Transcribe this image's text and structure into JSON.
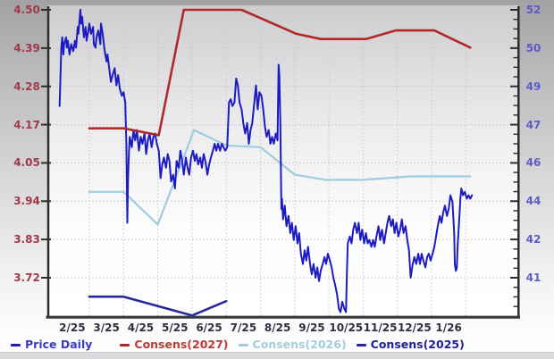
{
  "chart_data": {
    "type": "line",
    "title": "",
    "x_tick_labels": [
      "2/25",
      "3/25",
      "4/25",
      "5/25",
      "6/25",
      "7/25",
      "8/25",
      "9/25",
      "10/25",
      "11/25",
      "12/25",
      "1/26"
    ],
    "left_axis": {
      "tick_labels": [
        "4.50",
        "4.39",
        "4.28",
        "4.17",
        "4.05",
        "3.94",
        "3.83",
        "3.72"
      ],
      "color": "#a03a4a"
    },
    "right_axis": {
      "tick_labels": [
        "52",
        "50",
        "49",
        "47",
        "46",
        "44",
        "42",
        "41"
      ],
      "color": "#5c5cc4"
    },
    "x_axis": {
      "label_color": "#2f2f3f"
    },
    "grid": {
      "horizontal_color": "#d9babe",
      "vertical_color": "#c6c8ce",
      "style": "dotted"
    },
    "axis_line_color": "#2d2d30",
    "legend": {
      "position": "bottom",
      "items": [
        {
          "label": "Price Daily",
          "color": "#3a3ac8"
        },
        {
          "label": "Consens(2027)",
          "color": "#c23838"
        },
        {
          "label": "Consens(2026)",
          "color": "#a4cddd"
        },
        {
          "label": "Consens(2025)",
          "color": "#1f1f9c"
        }
      ]
    },
    "series": [
      {
        "name": "Consens(2025)",
        "color": "#28289e",
        "width": 2.6,
        "points": [
          [
            1.0,
            3.665
          ],
          [
            2.0,
            3.665
          ],
          [
            4.0,
            3.61
          ],
          [
            5.0,
            3.652
          ]
        ]
      },
      {
        "name": "Consens(2026)",
        "color": "#9fccdc",
        "width": 2.2,
        "points": [
          [
            1.0,
            3.97
          ],
          [
            2.0,
            3.97
          ],
          [
            3.0,
            3.875
          ],
          [
            4.06,
            4.15
          ],
          [
            5.0,
            4.105
          ],
          [
            6.0,
            4.1
          ],
          [
            7.0,
            4.02
          ],
          [
            7.9,
            4.005
          ],
          [
            9.0,
            4.005
          ],
          [
            10.4,
            4.015
          ],
          [
            12.13,
            4.015
          ]
        ]
      },
      {
        "name": "Price Daily",
        "color": "#1c1cc2",
        "width": 2,
        "points": [
          [
            0.13,
            4.22
          ],
          [
            0.18,
            4.39
          ],
          [
            0.21,
            4.42
          ],
          [
            0.24,
            4.37
          ],
          [
            0.26,
            4.4
          ],
          [
            0.32,
            4.42
          ],
          [
            0.34,
            4.39
          ],
          [
            0.37,
            4.41
          ],
          [
            0.42,
            4.37
          ],
          [
            0.47,
            4.4
          ],
          [
            0.53,
            4.38
          ],
          [
            0.58,
            4.41
          ],
          [
            0.61,
            4.39
          ],
          [
            0.66,
            4.45
          ],
          [
            0.68,
            4.43
          ],
          [
            0.74,
            4.5
          ],
          [
            0.76,
            4.46
          ],
          [
            0.79,
            4.48
          ],
          [
            0.84,
            4.42
          ],
          [
            0.89,
            4.45
          ],
          [
            0.92,
            4.41
          ],
          [
            0.97,
            4.44
          ],
          [
            1.0,
            4.46
          ],
          [
            1.05,
            4.43
          ],
          [
            1.11,
            4.45
          ],
          [
            1.13,
            4.4
          ],
          [
            1.18,
            4.39
          ],
          [
            1.21,
            4.42
          ],
          [
            1.26,
            4.44
          ],
          [
            1.32,
            4.4
          ],
          [
            1.34,
            4.46
          ],
          [
            1.39,
            4.43
          ],
          [
            1.45,
            4.38
          ],
          [
            1.5,
            4.35
          ],
          [
            1.53,
            4.37
          ],
          [
            1.58,
            4.33
          ],
          [
            1.63,
            4.29
          ],
          [
            1.68,
            4.31
          ],
          [
            1.74,
            4.33
          ],
          [
            1.79,
            4.28
          ],
          [
            1.84,
            4.31
          ],
          [
            1.89,
            4.27
          ],
          [
            1.95,
            4.25
          ],
          [
            2.0,
            4.26
          ],
          [
            2.05,
            4.23
          ],
          [
            2.08,
            4.11
          ],
          [
            2.11,
            3.88
          ],
          [
            2.13,
            4.01
          ],
          [
            2.16,
            4.09
          ],
          [
            2.18,
            4.13
          ],
          [
            2.24,
            4.1
          ],
          [
            2.29,
            4.15
          ],
          [
            2.34,
            4.12
          ],
          [
            2.39,
            4.15
          ],
          [
            2.45,
            4.09
          ],
          [
            2.5,
            4.13
          ],
          [
            2.55,
            4.11
          ],
          [
            2.61,
            4.14
          ],
          [
            2.66,
            4.08
          ],
          [
            2.71,
            4.12
          ],
          [
            2.76,
            4.14
          ],
          [
            2.82,
            4.1
          ],
          [
            2.87,
            4.13
          ],
          [
            2.92,
            4.14
          ],
          [
            2.97,
            4.11
          ],
          [
            3.03,
            4.09
          ],
          [
            3.08,
            4.01
          ],
          [
            3.13,
            4.05
          ],
          [
            3.18,
            4.07
          ],
          [
            3.24,
            4.04
          ],
          [
            3.29,
            4.08
          ],
          [
            3.34,
            4.06
          ],
          [
            3.39,
            4.0
          ],
          [
            3.45,
            4.02
          ],
          [
            3.5,
            3.98
          ],
          [
            3.55,
            4.06
          ],
          [
            3.61,
            4.04
          ],
          [
            3.66,
            4.09
          ],
          [
            3.71,
            4.06
          ],
          [
            3.76,
            4.02
          ],
          [
            3.82,
            4.07
          ],
          [
            3.87,
            4.04
          ],
          [
            3.92,
            4.02
          ],
          [
            3.97,
            4.07
          ],
          [
            4.03,
            4.09
          ],
          [
            4.08,
            4.06
          ],
          [
            4.13,
            4.08
          ],
          [
            4.18,
            4.05
          ],
          [
            4.24,
            4.07
          ],
          [
            4.29,
            4.04
          ],
          [
            4.34,
            4.08
          ],
          [
            4.39,
            4.06
          ],
          [
            4.45,
            4.02
          ],
          [
            4.5,
            4.05
          ],
          [
            4.55,
            4.07
          ],
          [
            4.61,
            4.09
          ],
          [
            4.66,
            4.11
          ],
          [
            4.71,
            4.09
          ],
          [
            4.76,
            4.11
          ],
          [
            4.82,
            4.09
          ],
          [
            4.87,
            4.11
          ],
          [
            4.92,
            4.1
          ],
          [
            4.97,
            4.09
          ],
          [
            5.03,
            4.1
          ],
          [
            5.08,
            4.23
          ],
          [
            5.13,
            4.24
          ],
          [
            5.18,
            4.22
          ],
          [
            5.24,
            4.23
          ],
          [
            5.29,
            4.3
          ],
          [
            5.34,
            4.28
          ],
          [
            5.39,
            4.23
          ],
          [
            5.45,
            4.21
          ],
          [
            5.5,
            4.17
          ],
          [
            5.55,
            4.14
          ],
          [
            5.61,
            4.17
          ],
          [
            5.66,
            4.11
          ],
          [
            5.71,
            4.15
          ],
          [
            5.76,
            4.17
          ],
          [
            5.82,
            4.23
          ],
          [
            5.87,
            4.28
          ],
          [
            5.92,
            4.21
          ],
          [
            5.97,
            4.26
          ],
          [
            6.03,
            4.25
          ],
          [
            6.08,
            4.21
          ],
          [
            6.13,
            4.16
          ],
          [
            6.18,
            4.13
          ],
          [
            6.24,
            4.15
          ],
          [
            6.29,
            4.11
          ],
          [
            6.34,
            4.13
          ],
          [
            6.39,
            4.11
          ],
          [
            6.45,
            4.14
          ],
          [
            6.5,
            4.12
          ],
          [
            6.53,
            4.34
          ],
          [
            6.55,
            4.31
          ],
          [
            6.58,
            4.18
          ],
          [
            6.61,
            3.92
          ],
          [
            6.63,
            3.95
          ],
          [
            6.66,
            3.89
          ],
          [
            6.71,
            3.93
          ],
          [
            6.76,
            3.87
          ],
          [
            6.82,
            3.9
          ],
          [
            6.87,
            3.85
          ],
          [
            6.92,
            3.88
          ],
          [
            6.97,
            3.83
          ],
          [
            7.03,
            3.87
          ],
          [
            7.08,
            3.82
          ],
          [
            7.13,
            3.85
          ],
          [
            7.18,
            3.79
          ],
          [
            7.24,
            3.76
          ],
          [
            7.29,
            3.8
          ],
          [
            7.34,
            3.77
          ],
          [
            7.39,
            3.81
          ],
          [
            7.45,
            3.76
          ],
          [
            7.5,
            3.73
          ],
          [
            7.55,
            3.76
          ],
          [
            7.61,
            3.72
          ],
          [
            7.66,
            3.75
          ],
          [
            7.71,
            3.71
          ],
          [
            7.76,
            3.74
          ],
          [
            7.82,
            3.76
          ],
          [
            7.87,
            3.78
          ],
          [
            7.92,
            3.76
          ],
          [
            7.97,
            3.79
          ],
          [
            8.03,
            3.77
          ],
          [
            8.08,
            3.75
          ],
          [
            8.13,
            3.72
          ],
          [
            8.18,
            3.7
          ],
          [
            8.24,
            3.67
          ],
          [
            8.29,
            3.63
          ],
          [
            8.34,
            3.62
          ],
          [
            8.39,
            3.65
          ],
          [
            8.45,
            3.63
          ],
          [
            8.5,
            3.62
          ],
          [
            8.53,
            3.75
          ],
          [
            8.55,
            3.82
          ],
          [
            8.61,
            3.84
          ],
          [
            8.66,
            3.82
          ],
          [
            8.71,
            3.86
          ],
          [
            8.76,
            3.88
          ],
          [
            8.82,
            3.85
          ],
          [
            8.87,
            3.88
          ],
          [
            8.92,
            3.83
          ],
          [
            8.97,
            3.86
          ],
          [
            9.03,
            3.82
          ],
          [
            9.08,
            3.85
          ],
          [
            9.13,
            3.82
          ],
          [
            9.18,
            3.83
          ],
          [
            9.24,
            3.81
          ],
          [
            9.29,
            3.83
          ],
          [
            9.34,
            3.81
          ],
          [
            9.39,
            3.84
          ],
          [
            9.45,
            3.87
          ],
          [
            9.5,
            3.83
          ],
          [
            9.55,
            3.86
          ],
          [
            9.61,
            3.82
          ],
          [
            9.66,
            3.85
          ],
          [
            9.71,
            3.88
          ],
          [
            9.76,
            3.9
          ],
          [
            9.82,
            3.87
          ],
          [
            9.87,
            3.89
          ],
          [
            9.92,
            3.85
          ],
          [
            9.97,
            3.88
          ],
          [
            10.03,
            3.84
          ],
          [
            10.08,
            3.86
          ],
          [
            10.13,
            3.89
          ],
          [
            10.18,
            3.85
          ],
          [
            10.24,
            3.87
          ],
          [
            10.29,
            3.83
          ],
          [
            10.34,
            3.8
          ],
          [
            10.39,
            3.72
          ],
          [
            10.45,
            3.76
          ],
          [
            10.5,
            3.78
          ],
          [
            10.55,
            3.76
          ],
          [
            10.61,
            3.79
          ],
          [
            10.66,
            3.76
          ],
          [
            10.71,
            3.79
          ],
          [
            10.76,
            3.77
          ],
          [
            10.82,
            3.75
          ],
          [
            10.87,
            3.78
          ],
          [
            10.92,
            3.79
          ],
          [
            10.97,
            3.77
          ],
          [
            11.03,
            3.79
          ],
          [
            11.08,
            3.81
          ],
          [
            11.13,
            3.84
          ],
          [
            11.18,
            3.87
          ],
          [
            11.24,
            3.9
          ],
          [
            11.29,
            3.88
          ],
          [
            11.34,
            3.91
          ],
          [
            11.39,
            3.93
          ],
          [
            11.45,
            3.9
          ],
          [
            11.5,
            3.92
          ],
          [
            11.55,
            3.96
          ],
          [
            11.61,
            3.94
          ],
          [
            11.66,
            3.85
          ],
          [
            11.68,
            3.76
          ],
          [
            11.71,
            3.74
          ],
          [
            11.74,
            3.75
          ],
          [
            11.76,
            3.81
          ],
          [
            11.82,
            3.91
          ],
          [
            11.84,
            3.95
          ],
          [
            11.87,
            3.98
          ],
          [
            11.92,
            3.96
          ],
          [
            11.97,
            3.97
          ],
          [
            12.03,
            3.95
          ],
          [
            12.08,
            3.96
          ],
          [
            12.13,
            3.95
          ],
          [
            12.18,
            3.96
          ]
        ]
      },
      {
        "name": "Consens(2027)",
        "color": "#b22828",
        "width": 2.6,
        "points": [
          [
            1.0,
            4.155
          ],
          [
            2.0,
            4.155
          ],
          [
            3.03,
            4.135
          ],
          [
            3.76,
            4.5
          ],
          [
            5.45,
            4.5
          ],
          [
            7.05,
            4.43
          ],
          [
            7.76,
            4.415
          ],
          [
            9.08,
            4.415
          ],
          [
            9.95,
            4.44
          ],
          [
            11.08,
            4.44
          ],
          [
            12.13,
            4.39
          ]
        ]
      }
    ]
  }
}
